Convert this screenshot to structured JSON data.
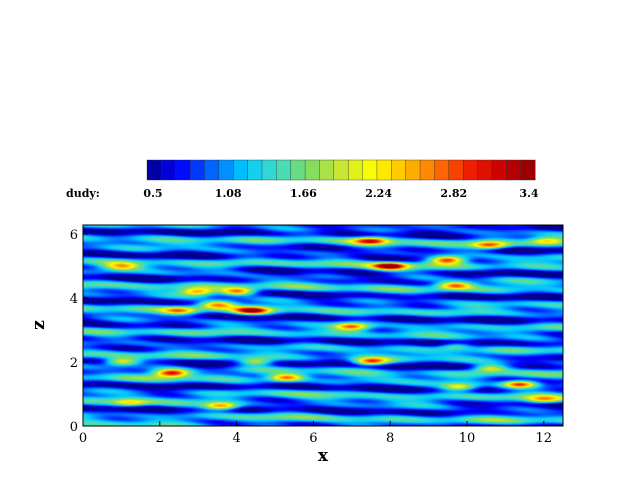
{
  "chart_data": {
    "type": "heatmap",
    "title": "",
    "xlabel": "x",
    "ylabel": "z",
    "xlim": [
      0,
      12.5
    ],
    "ylim": [
      0,
      6.28
    ],
    "x_ticks": [
      "0",
      "2",
      "4",
      "6",
      "8",
      "10",
      "12"
    ],
    "y_ticks": [
      "0",
      "2",
      "4",
      "6"
    ],
    "colorbar": {
      "label": "dudy:",
      "range": [
        0.5,
        3.4
      ],
      "levels": 27,
      "tick_labels": [
        "0.5",
        "1.08",
        "1.66",
        "2.24",
        "2.82",
        "3.4"
      ],
      "colors": [
        "#00008c",
        "#0000ff",
        "#0064ff",
        "#00c8ff",
        "#3cdcc8",
        "#7ddc64",
        "#c8e632",
        "#ffff00",
        "#ffbe00",
        "#ff6e00",
        "#f01e00",
        "#c80000",
        "#8c0000"
      ]
    },
    "background_value": 1.0,
    "hotspots": [
      {
        "x": 8.0,
        "z": 5.0,
        "value": 3.2
      },
      {
        "x": 9.5,
        "z": 5.2,
        "value": 3.1
      },
      {
        "x": 10.6,
        "z": 5.65,
        "value": 2.6
      },
      {
        "x": 7.5,
        "z": 5.8,
        "value": 2.6
      },
      {
        "x": 9.7,
        "z": 4.4,
        "value": 2.7
      },
      {
        "x": 3.0,
        "z": 4.2,
        "value": 2.7
      },
      {
        "x": 4.0,
        "z": 4.2,
        "value": 3.0
      },
      {
        "x": 3.5,
        "z": 3.8,
        "value": 2.6
      },
      {
        "x": 4.4,
        "z": 3.6,
        "value": 3.0
      },
      {
        "x": 2.5,
        "z": 3.6,
        "value": 2.4
      },
      {
        "x": 7.0,
        "z": 3.1,
        "value": 2.8
      },
      {
        "x": 1.0,
        "z": 2.0,
        "value": 2.5
      },
      {
        "x": 2.3,
        "z": 1.65,
        "value": 3.2
      },
      {
        "x": 4.5,
        "z": 2.0,
        "value": 2.3
      },
      {
        "x": 5.3,
        "z": 1.5,
        "value": 2.8
      },
      {
        "x": 7.5,
        "z": 2.0,
        "value": 3.0
      },
      {
        "x": 9.8,
        "z": 1.2,
        "value": 2.4
      },
      {
        "x": 11.4,
        "z": 1.3,
        "value": 3.2
      },
      {
        "x": 12.0,
        "z": 0.8,
        "value": 2.2
      },
      {
        "x": 3.6,
        "z": 0.6,
        "value": 2.8
      },
      {
        "x": 1.2,
        "z": 0.7,
        "value": 2.0
      },
      {
        "x": 12.1,
        "z": 5.8,
        "value": 2.3
      },
      {
        "x": 1.0,
        "z": 5.0,
        "value": 2.2
      },
      {
        "x": 9.7,
        "z": 2.5,
        "value": 2.0
      },
      {
        "x": 10.6,
        "z": 1.8,
        "value": 2.2
      }
    ]
  }
}
